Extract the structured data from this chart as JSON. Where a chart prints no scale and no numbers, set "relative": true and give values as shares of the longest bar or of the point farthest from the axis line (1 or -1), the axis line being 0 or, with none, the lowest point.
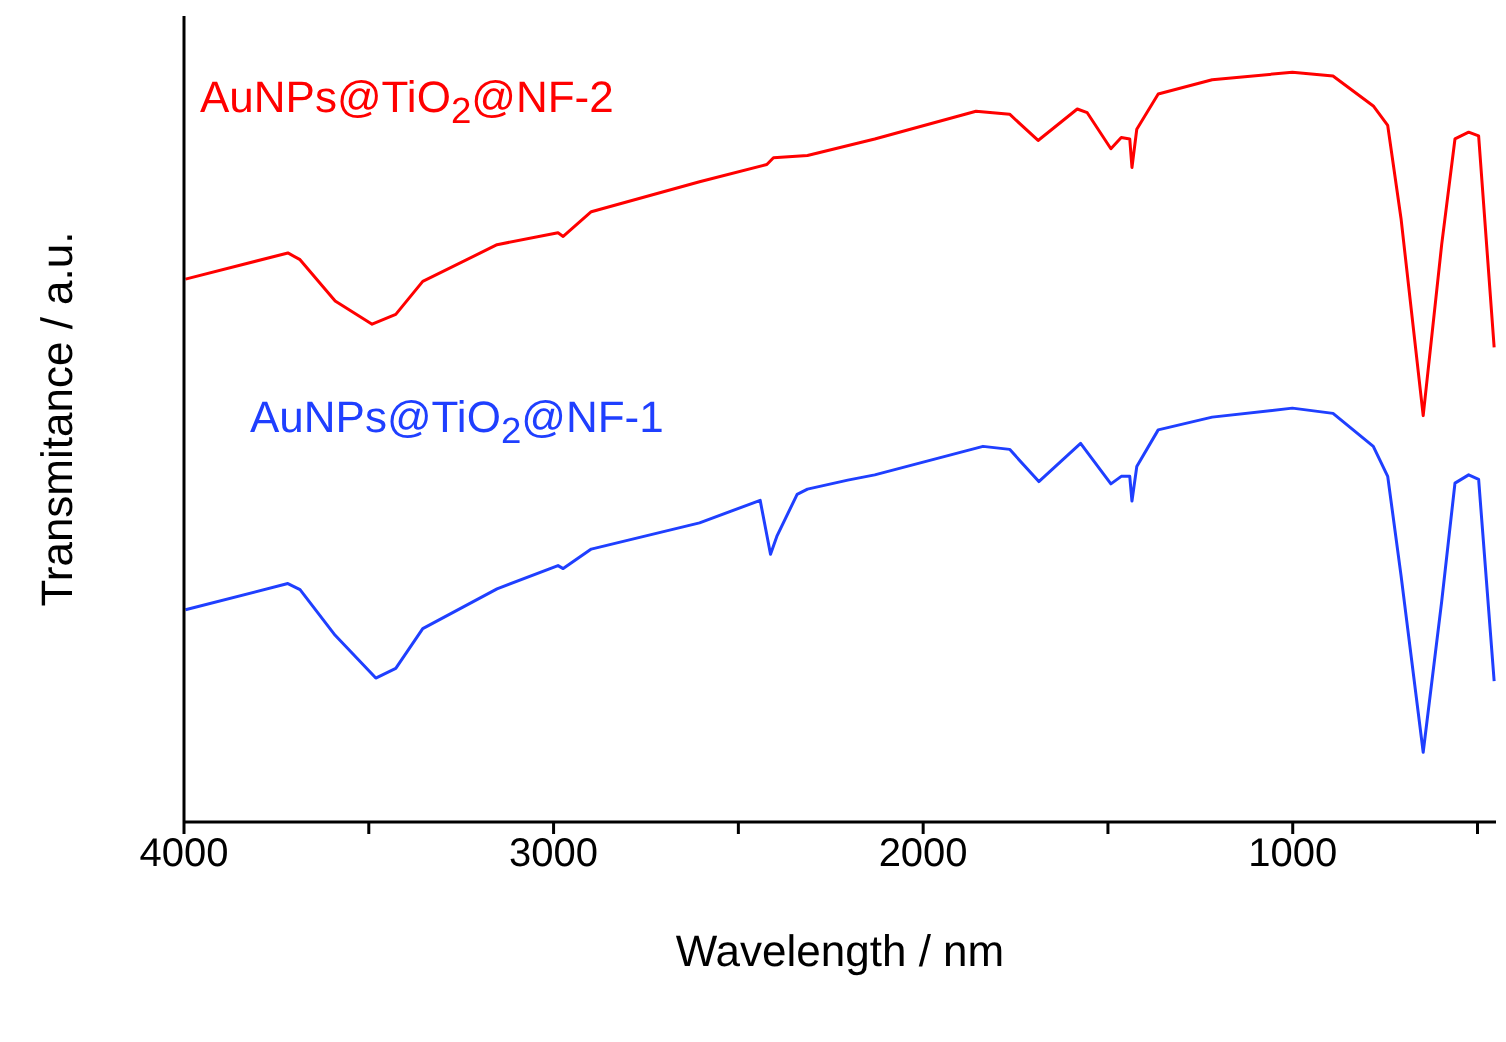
{
  "chart_data": {
    "type": "line",
    "relative": true,
    "xlabel": "Wavelength / nm",
    "ylabel": "Transmitance / a.u.",
    "xlim": [
      4000,
      450
    ],
    "xticks": [
      4000,
      {
        "value": 3500,
        "label": null
      },
      3000,
      {
        "value": 2500,
        "label": null
      },
      2000,
      {
        "value": 1500,
        "label": null
      },
      1000,
      {
        "value": 500,
        "label": null
      }
    ],
    "grid": false,
    "legend": false,
    "marker": "none",
    "line_style": "solid",
    "series": [
      {
        "name": "AuNPs@TiO$_{2}$@NF-2",
        "color": "#ff0000",
        "x": [
          3996,
          3719,
          3686,
          3591,
          3491,
          3427,
          3354,
          3153,
          2988,
          2974,
          2898,
          2605,
          2423,
          2405,
          2313,
          2131,
          1857,
          1766,
          1689,
          1583,
          1556,
          1492,
          1464,
          1441,
          1435,
          1422,
          1364,
          1218,
          1001,
          891,
          782,
          743,
          707,
          647,
          597,
          561,
          524,
          497,
          455
        ],
        "values": [
          0.724,
          0.759,
          0.75,
          0.695,
          0.664,
          0.677,
          0.721,
          0.77,
          0.786,
          0.781,
          0.814,
          0.854,
          0.877,
          0.886,
          0.889,
          0.911,
          0.948,
          0.944,
          0.909,
          0.951,
          0.946,
          0.898,
          0.913,
          0.911,
          0.873,
          0.924,
          0.971,
          0.99,
          1.0,
          0.995,
          0.955,
          0.929,
          0.805,
          0.542,
          0.77,
          0.911,
          0.92,
          0.915,
          0.633
        ]
      },
      {
        "name": "AuNPs@TiO$_{2}$@NF-1",
        "color": "#1f3fff",
        "x": [
          3996,
          3719,
          3686,
          3591,
          3481,
          3427,
          3354,
          3153,
          2988,
          2974,
          2898,
          2605,
          2441,
          2413,
          2395,
          2341,
          2313,
          2204,
          2131,
          1838,
          1766,
          1687,
          1574,
          1492,
          1464,
          1441,
          1435,
          1422,
          1364,
          1218,
          1001,
          891,
          782,
          743,
          707,
          647,
          597,
          561,
          524,
          497,
          455
        ],
        "values": [
          0.283,
          0.318,
          0.31,
          0.249,
          0.192,
          0.205,
          0.258,
          0.311,
          0.342,
          0.338,
          0.364,
          0.399,
          0.429,
          0.357,
          0.382,
          0.437,
          0.444,
          0.456,
          0.463,
          0.501,
          0.497,
          0.454,
          0.505,
          0.451,
          0.461,
          0.461,
          0.428,
          0.474,
          0.523,
          0.54,
          0.552,
          0.545,
          0.501,
          0.461,
          0.329,
          0.093,
          0.294,
          0.452,
          0.463,
          0.457,
          0.188
        ]
      }
    ]
  }
}
